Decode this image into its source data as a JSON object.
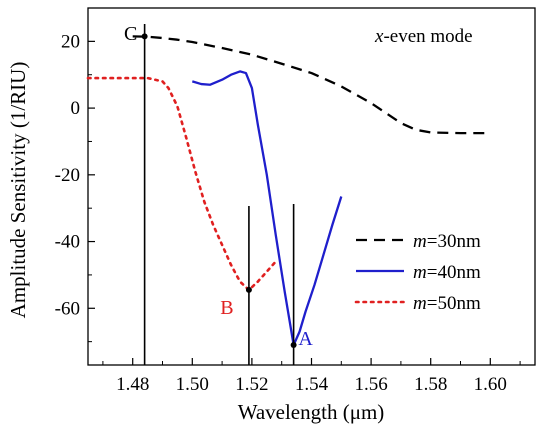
{
  "chart_data": {
    "type": "line",
    "title": "",
    "annotation_title": {
      "italic": "x",
      "rest": "-even mode"
    },
    "xlabel": "Wavelength (μm)",
    "ylabel": "Amplitude Sensitivity (1/RIU)",
    "xlim": [
      1.465,
      1.615
    ],
    "ylim": [
      -77,
      30
    ],
    "xticks": [
      1.48,
      1.5,
      1.52,
      1.54,
      1.56,
      1.58,
      1.6
    ],
    "xtick_labels": [
      "1.48",
      "1.50",
      "1.52",
      "1.54",
      "1.56",
      "1.58",
      "1.60"
    ],
    "yticks": [
      20,
      0,
      -20,
      -40,
      -60
    ],
    "ytick_labels": [
      "20",
      "0",
      "-20",
      "-40",
      "-60"
    ],
    "grid": false,
    "legend_position": "right",
    "series": [
      {
        "name_italic": "m",
        "name_rest": "=30nm",
        "color": "#000000",
        "dash": "dashed",
        "x": [
          1.48,
          1.485,
          1.49,
          1.495,
          1.5,
          1.51,
          1.52,
          1.53,
          1.54,
          1.55,
          1.56,
          1.565,
          1.57,
          1.575,
          1.58,
          1.59,
          1.6
        ],
        "y": [
          21.5,
          21.4,
          21.0,
          20.5,
          19.8,
          18.0,
          16.0,
          13.3,
          10.5,
          6.5,
          1.5,
          -1.5,
          -4.5,
          -6.5,
          -7.3,
          -7.5,
          -7.5
        ]
      },
      {
        "name_italic": "m",
        "name_rest": "=40nm",
        "color": "#1f1fcc",
        "dash": "solid",
        "x": [
          1.5,
          1.503,
          1.506,
          1.51,
          1.513,
          1.516,
          1.518,
          1.52,
          1.522,
          1.525,
          1.528,
          1.531,
          1.534,
          1.536,
          1.538,
          1.541,
          1.544,
          1.547,
          1.55
        ],
        "y": [
          8.0,
          7.2,
          7.0,
          8.5,
          10.0,
          11.0,
          10.5,
          6.0,
          -5.0,
          -20.0,
          -38.0,
          -55.0,
          -71.0,
          -67.0,
          -61.0,
          -53.0,
          -44.0,
          -35.0,
          -26.5
        ]
      },
      {
        "name_italic": "m",
        "name_rest": "=50nm",
        "color": "#e02020",
        "dash": "dotted",
        "x": [
          1.465,
          1.475,
          1.485,
          1.49,
          1.492,
          1.495,
          1.498,
          1.501,
          1.504,
          1.507,
          1.51,
          1.513,
          1.516,
          1.519,
          1.522,
          1.525,
          1.528
        ],
        "y": [
          9.0,
          9.0,
          9.0,
          8.0,
          6.0,
          0.5,
          -9.0,
          -19.0,
          -28.0,
          -35.0,
          -41.0,
          -47.0,
          -52.0,
          -54.5,
          -52.0,
          -49.0,
          -46.0
        ]
      }
    ],
    "markers": [
      {
        "label": "C",
        "x": 1.484,
        "y": 21.5,
        "color": "#000000"
      },
      {
        "label": "B",
        "x": 1.519,
        "y": -54.5,
        "color": "#e02020"
      },
      {
        "label": "A",
        "x": 1.534,
        "y": -71.0,
        "color": "#1f1fcc"
      }
    ]
  }
}
